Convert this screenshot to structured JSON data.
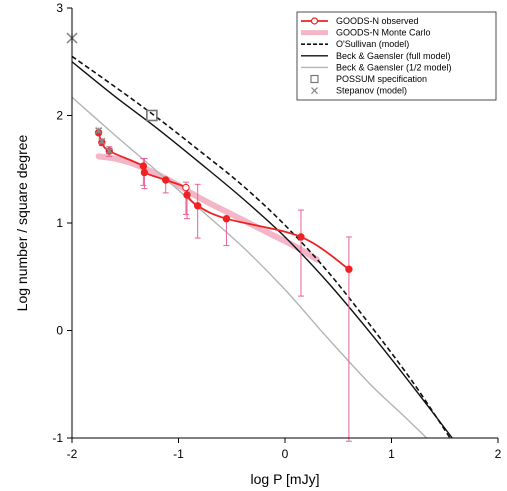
{
  "chart_data": {
    "type": "line",
    "xlabel": "log P [mJy]",
    "ylabel": "Log number / square degree",
    "xlim": [
      -2,
      2
    ],
    "ylim": [
      -1,
      3
    ],
    "xticks": [
      "-2",
      "-1",
      "0",
      "1",
      "2"
    ],
    "yticks": [
      "-1",
      "0",
      "1",
      "2",
      "3"
    ],
    "grid": false,
    "legend_position": "top-right",
    "series": [
      {
        "name": "GOODS-N observed",
        "style": "line-markers",
        "color": "#ee2222",
        "x": [
          -1.75,
          -1.72,
          -1.65,
          -1.33,
          -1.32,
          -1.12,
          -0.93,
          -0.92,
          -0.82,
          -0.55,
          0.15,
          0.6
        ],
        "y": [
          1.84,
          1.75,
          1.67,
          1.53,
          1.47,
          1.4,
          1.33,
          1.26,
          1.16,
          1.04,
          0.87,
          0.57
        ],
        "yerr_low": [
          0.02,
          0.03,
          0.05,
          0.18,
          0.15,
          0.12,
          0.25,
          0.22,
          0.3,
          0.25,
          0.55,
          1.6
        ],
        "yerr_high": [
          0.02,
          0.03,
          0.04,
          0.07,
          0.13,
          0.0,
          0.05,
          0.0,
          0.2,
          0.0,
          0.25,
          0.3
        ]
      },
      {
        "name": "GOODS-N Monte Carlo",
        "style": "thick-line",
        "color": "#f4b6c6",
        "x": [
          -1.75,
          -1.6,
          -1.45,
          -1.3,
          -1.15,
          -1.0,
          -0.85,
          -0.7,
          -0.5,
          -0.3,
          -0.1,
          0.1,
          0.3
        ],
        "y": [
          1.62,
          1.6,
          1.56,
          1.5,
          1.43,
          1.35,
          1.26,
          1.18,
          1.08,
          0.98,
          0.88,
          0.78,
          0.66
        ]
      },
      {
        "name": "O'Sullivan (model)",
        "style": "dashed",
        "color": "#111111",
        "x": [
          -2.0,
          -1.6,
          -1.2,
          -0.8,
          -0.4,
          0.0,
          0.4,
          0.8,
          1.2,
          1.55
        ],
        "y": [
          2.55,
          2.27,
          1.98,
          1.67,
          1.35,
          0.98,
          0.55,
          0.05,
          -0.48,
          -1.0
        ]
      },
      {
        "name": "Beck & Gaensler (full model)",
        "style": "solid",
        "color": "#111111",
        "x": [
          -2.0,
          -1.6,
          -1.2,
          -0.8,
          -0.4,
          0.0,
          0.4,
          0.8,
          1.2,
          1.57
        ],
        "y": [
          2.5,
          2.18,
          1.88,
          1.56,
          1.23,
          0.87,
          0.45,
          -0.02,
          -0.52,
          -1.0
        ]
      },
      {
        "name": "Beck & Gaensler (1/2 model)",
        "style": "solid",
        "color": "#b4b4b4",
        "x": [
          -2.0,
          -1.6,
          -1.2,
          -0.8,
          -0.4,
          0.0,
          0.4,
          0.8,
          1.1,
          1.33
        ],
        "y": [
          2.17,
          1.82,
          1.48,
          1.13,
          0.78,
          0.38,
          -0.07,
          -0.5,
          -0.78,
          -1.0
        ]
      },
      {
        "name": "POSSUM specification",
        "style": "marker-square",
        "color": "#777777",
        "x": [
          -1.25
        ],
        "y": [
          2.0
        ]
      },
      {
        "name": "Stepanov (model)",
        "style": "marker-star",
        "color": "#888888",
        "x": [
          -2.0,
          -1.75,
          -1.72,
          -1.65
        ],
        "y": [
          2.72,
          1.86,
          1.76,
          1.67
        ]
      }
    ]
  }
}
